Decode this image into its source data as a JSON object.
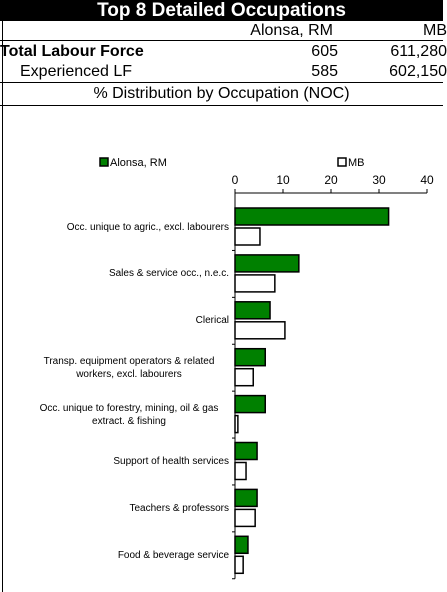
{
  "table": {
    "title": "Top 8 Detailed Occupations",
    "columns": [
      "Alonsa, RM",
      "MB"
    ],
    "rows": [
      [
        "Total Labour Force",
        "605",
        "611,280"
      ],
      [
        "Experienced LF",
        "585",
        "602,150"
      ]
    ],
    "section": "% Distribution by Occupation (NOC)"
  },
  "chart_data": {
    "type": "hbar",
    "categories": [
      "Occ. unique to agric., excl. labourers",
      "Sales & service occ., n.e.c.",
      "Clerical",
      "Transp. equipment operators & related workers, excl. labourers",
      "Occ. unique to forestry, mining, oil & gas extract. & fishing",
      "Support of health services",
      "Teachers & professors",
      "Food & beverage service"
    ],
    "series": [
      {
        "name": "Alonsa, RM",
        "color": "#008000",
        "values": [
          32,
          13.3,
          7.3,
          6.3,
          6.3,
          4.6,
          4.6,
          2.7
        ]
      },
      {
        "name": "MB",
        "color": "#ffffff",
        "values": [
          5.2,
          8.3,
          10.4,
          3.8,
          0.6,
          2.3,
          4.2,
          1.7
        ]
      }
    ],
    "xlim": [
      0,
      40
    ],
    "xticks": [
      0,
      10,
      20,
      30,
      40
    ]
  }
}
